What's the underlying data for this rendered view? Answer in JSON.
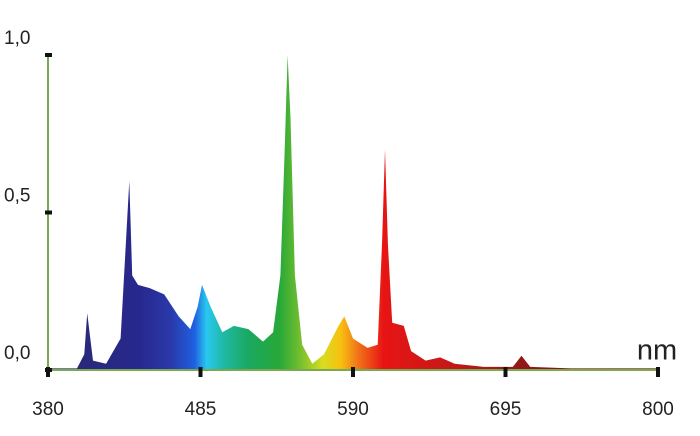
{
  "chart_data": {
    "type": "area",
    "x_label": "nm",
    "x": [
      380,
      400,
      405,
      407,
      411,
      420,
      430,
      436,
      438,
      442,
      450,
      460,
      470,
      478,
      483,
      486,
      492,
      500,
      508,
      518,
      528,
      535,
      540,
      543,
      545,
      547,
      550,
      555,
      562,
      570,
      580,
      584,
      590,
      600,
      607,
      610,
      612,
      614,
      617,
      625,
      630,
      640,
      650,
      660,
      680,
      700,
      706,
      712,
      740,
      800
    ],
    "values": [
      0.005,
      0.005,
      0.05,
      0.18,
      0.03,
      0.02,
      0.1,
      0.6,
      0.3,
      0.27,
      0.26,
      0.24,
      0.17,
      0.13,
      0.2,
      0.27,
      0.2,
      0.12,
      0.14,
      0.13,
      0.09,
      0.12,
      0.3,
      0.7,
      1.0,
      0.8,
      0.3,
      0.08,
      0.02,
      0.05,
      0.14,
      0.17,
      0.1,
      0.07,
      0.08,
      0.4,
      0.7,
      0.4,
      0.15,
      0.14,
      0.06,
      0.03,
      0.04,
      0.02,
      0.01,
      0.01,
      0.045,
      0.01,
      0.005,
      0.005
    ],
    "xlim": [
      380,
      800
    ],
    "ylim": [
      0,
      1
    ],
    "xticks": [
      380,
      485,
      590,
      695,
      800
    ],
    "yticks": [
      {
        "value": 0,
        "label": "0,0"
      },
      {
        "value": 0.5,
        "label": "0,5"
      },
      {
        "value": 1,
        "label": "1,0"
      }
    ],
    "axis_color": "#7aaa50"
  }
}
